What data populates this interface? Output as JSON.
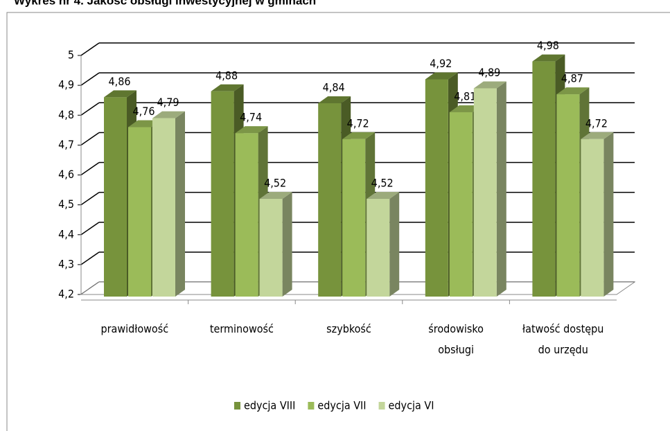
{
  "chart_data": {
    "type": "bar3d",
    "title": "Wykres nr 4. Jakość obsługi inwestycyjnej w gminach",
    "categories": [
      "prawidłowość",
      "terminowość",
      "szybkość",
      "środowisko\nobsługi",
      "łatwość dostępu\ndo urzędu"
    ],
    "series": [
      {
        "name": "edycja VIII",
        "color": "#77933c",
        "values": [
          4.86,
          4.88,
          4.84,
          4.92,
          4.98
        ],
        "value_labels": [
          "4,86",
          "4,88",
          "4,84",
          "4,92",
          "4,98"
        ]
      },
      {
        "name": "edycja VII",
        "color": "#9bbb59",
        "values": [
          4.76,
          4.74,
          4.72,
          4.81,
          4.87
        ],
        "value_labels": [
          "4,76",
          "4,74",
          "4,72",
          "4,81",
          "4,87"
        ]
      },
      {
        "name": "edycja VI",
        "color": "#c3d69b",
        "values": [
          4.79,
          4.52,
          4.52,
          4.89,
          4.72
        ],
        "value_labels": [
          "4,79",
          "4,52",
          "4,52",
          "4,89",
          "4,72"
        ]
      }
    ],
    "ylim": [
      4.2,
      5
    ],
    "yticks": [
      {
        "value": 4.2,
        "label": "4,2"
      },
      {
        "value": 4.3,
        "label": "4,3"
      },
      {
        "value": 4.4,
        "label": "4,4"
      },
      {
        "value": 4.5,
        "label": "4,5"
      },
      {
        "value": 4.6,
        "label": "4,6"
      },
      {
        "value": 4.7,
        "label": "4,7"
      },
      {
        "value": 4.8,
        "label": "4,8"
      },
      {
        "value": 4.9,
        "label": "4,9"
      },
      5
    ],
    "grid": true,
    "legend": "bottom"
  }
}
